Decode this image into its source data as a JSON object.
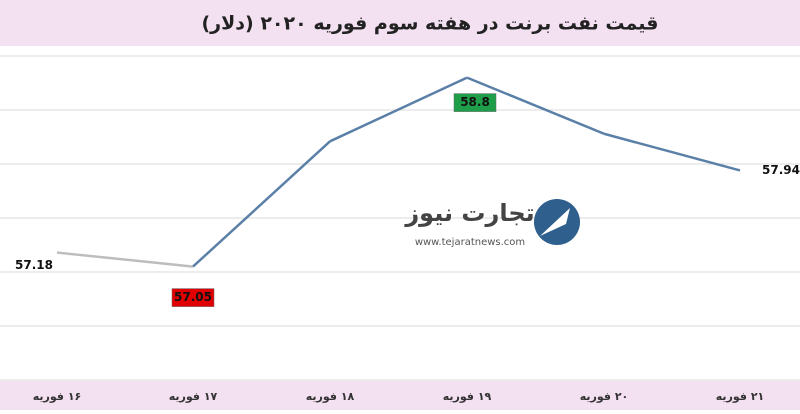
{
  "chart_data": {
    "type": "line",
    "title": "قیمت نفت برنت در هفته سوم فوریه ۲۰۲۰ (دلار)",
    "categories": [
      "۱۶ فوریه",
      "۱۷ فوریه",
      "۱۸ فوریه",
      "۱۹ فوریه",
      "۲۰ فوریه",
      "۲۱ فوریه"
    ],
    "series": [
      {
        "name": "Brent",
        "color": "#5b80a8",
        "values": [
          57.18,
          57.05,
          58.21,
          58.8,
          58.28,
          57.94
        ]
      }
    ],
    "start_segment_color": "#bdbdbd",
    "value_labels": [
      "57.18",
      "57.05",
      null,
      "58.8",
      null,
      "57.94"
    ],
    "label_colors": [
      null,
      "#e00000",
      null,
      "#1f9e4a",
      null,
      null
    ],
    "ylim": [
      56,
      59
    ],
    "yticks": [
      56,
      56.5,
      57,
      57.5,
      58,
      58.5,
      59
    ],
    "grid": true,
    "watermark": {
      "text": "تجارت نیوز",
      "url": "www.tejaratnews.com"
    }
  }
}
